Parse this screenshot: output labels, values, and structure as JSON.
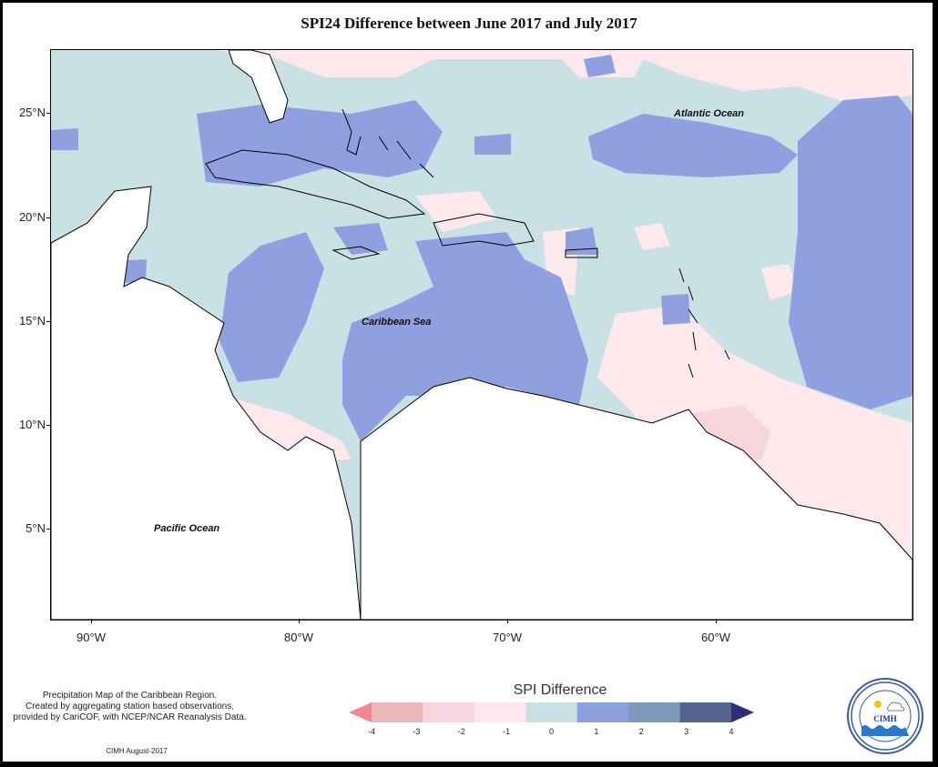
{
  "title": "SPI24 Difference between June 2017 and July 2017",
  "y_axis_labels": [
    "25°N",
    "20°N",
    "15°N",
    "10°N",
    "5°N"
  ],
  "x_axis_labels": [
    "90°W",
    "80°W",
    "70°W",
    "60°W"
  ],
  "ocean_labels": {
    "atlantic": "Atlantic Ocean",
    "caribbean": "Caribbean Sea",
    "pacific": "Pacific Ocean"
  },
  "description": [
    "Precipitation Map of the Caribbean Region.",
    "Created by aggregating station based observations,",
    "provided by CariCOF, with NCEP/NCAR Reanalysis Data."
  ],
  "credit": "CIMH August-2017",
  "legend": {
    "title": "SPI Difference",
    "labels": [
      "-4",
      "-3",
      "-2",
      "-1",
      "0",
      "1",
      "2",
      "3",
      "4"
    ],
    "colors": [
      "#f4868e",
      "#eab6ba",
      "#f6d6dc",
      "#fde9ec",
      "#c9e0e5",
      "#909fe0",
      "#7f9bbc",
      "#556390",
      "#2e2f78"
    ]
  },
  "logo": {
    "text": "CIMH",
    "ring_top": "Caribbean Institute for",
    "ring_bottom": "Meteorology and Hydrology"
  }
}
